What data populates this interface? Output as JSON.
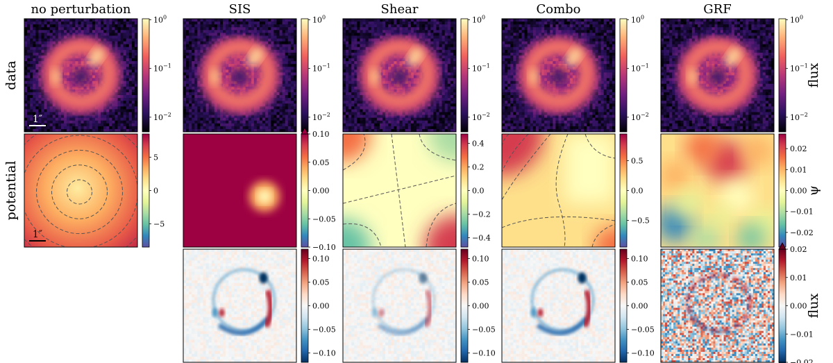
{
  "figure": {
    "columns": [
      "no perturbation",
      "SIS",
      "Shear",
      "Combo",
      "GRF"
    ],
    "rows": [
      "data",
      "potential"
    ],
    "row3_label": "flux",
    "scale_bar_label": "1″",
    "colors": {
      "magma": [
        "#000004",
        "#2c115f",
        "#721f81",
        "#b73779",
        "#f1605d",
        "#feb078",
        "#fcfdbf"
      ],
      "spectral": [
        "#5e4fa2",
        "#3288bd",
        "#66c2a5",
        "#abdda4",
        "#e6f598",
        "#ffffbf",
        "#fee08b",
        "#fdae61",
        "#f46d43",
        "#d53e4f",
        "#9e0142"
      ],
      "rdbu": [
        "#053061",
        "#2166ac",
        "#4393c3",
        "#92c5de",
        "#d1e5f0",
        "#f7f7f7",
        "#fddbc7",
        "#f4a582",
        "#d6604d",
        "#b2182b",
        "#67001f"
      ]
    }
  },
  "chart_data": [
    {
      "id": "data-no-perturbation",
      "type": "heatmap",
      "title": "no perturbation",
      "ylabel": "data",
      "colormap": "magma",
      "scale": "log",
      "colorbar_ticks": [
        {
          "base": "10",
          "exp": "0",
          "value": 1
        },
        {
          "base": "10",
          "exp": "−1",
          "value": 0.1
        },
        {
          "base": "10",
          "exp": "−2",
          "value": 0.01
        }
      ]
    },
    {
      "id": "data-sis",
      "type": "heatmap",
      "title": "SIS",
      "colormap": "magma",
      "scale": "log",
      "colorbar_ticks": [
        {
          "base": "10",
          "exp": "0",
          "value": 1
        },
        {
          "base": "10",
          "exp": "−1",
          "value": 0.1
        },
        {
          "base": "10",
          "exp": "−2",
          "value": 0.01
        }
      ]
    },
    {
      "id": "data-shear",
      "type": "heatmap",
      "title": "Shear",
      "colormap": "magma",
      "scale": "log",
      "colorbar_ticks": [
        {
          "base": "10",
          "exp": "0",
          "value": 1
        },
        {
          "base": "10",
          "exp": "−1",
          "value": 0.1
        },
        {
          "base": "10",
          "exp": "−2",
          "value": 0.01
        }
      ]
    },
    {
      "id": "data-combo",
      "type": "heatmap",
      "title": "Combo",
      "colormap": "magma",
      "scale": "log",
      "colorbar_ticks": [
        {
          "base": "10",
          "exp": "0",
          "value": 1
        },
        {
          "base": "10",
          "exp": "−1",
          "value": 0.1
        },
        {
          "base": "10",
          "exp": "−2",
          "value": 0.01
        }
      ]
    },
    {
      "id": "data-grf",
      "type": "heatmap",
      "title": "GRF",
      "colormap": "magma",
      "scale": "log",
      "colorbar_label": "flux",
      "colorbar_ticks": [
        {
          "base": "10",
          "exp": "0",
          "value": 1
        },
        {
          "base": "10",
          "exp": "−1",
          "value": 0.1
        },
        {
          "base": "10",
          "exp": "−2",
          "value": 0.01
        }
      ]
    },
    {
      "id": "potential-no-perturbation",
      "type": "heatmap",
      "ylabel": "potential",
      "colormap": "spectral",
      "contours": true,
      "range": [
        -8.5,
        8.5
      ],
      "colorbar_ticks": [
        {
          "label": "5",
          "value": 5
        },
        {
          "label": "0",
          "value": 0
        },
        {
          "label": "−5",
          "value": -5
        }
      ]
    },
    {
      "id": "potential-sis",
      "type": "heatmap",
      "colormap": "spectral",
      "range": [
        -0.1,
        0.1
      ],
      "extend": "max",
      "colorbar_ticks": [
        {
          "label": "0.10",
          "value": 0.1
        },
        {
          "label": "0.05",
          "value": 0.05
        },
        {
          "label": "0.00",
          "value": 0
        },
        {
          "label": "−0.05",
          "value": -0.05
        },
        {
          "label": "−0.10",
          "value": -0.1
        }
      ]
    },
    {
      "id": "potential-shear",
      "type": "heatmap",
      "colormap": "spectral",
      "contours": true,
      "range": [
        -0.48,
        0.48
      ],
      "colorbar_ticks": [
        {
          "label": "0.4",
          "value": 0.4
        },
        {
          "label": "0.2",
          "value": 0.2
        },
        {
          "label": "0.0",
          "value": 0
        },
        {
          "label": "−0.2",
          "value": -0.2
        },
        {
          "label": "−0.4",
          "value": -0.4
        }
      ]
    },
    {
      "id": "potential-combo",
      "type": "heatmap",
      "colormap": "spectral",
      "contours": true,
      "range": [
        -0.95,
        0.95
      ],
      "colorbar_ticks": [
        {
          "label": "0.5",
          "value": 0.5
        },
        {
          "label": "0.0",
          "value": 0
        },
        {
          "label": "−0.5",
          "value": -0.5
        }
      ]
    },
    {
      "id": "potential-grf",
      "type": "heatmap",
      "colormap": "spectral",
      "range": [
        -0.027,
        0.027
      ],
      "colorbar_label": "ψ",
      "colorbar_ticks": [
        {
          "label": "0.02",
          "value": 0.02
        },
        {
          "label": "0.01",
          "value": 0.01
        },
        {
          "label": "0.00",
          "value": 0
        },
        {
          "label": "−0.01",
          "value": -0.01
        },
        {
          "label": "−0.02",
          "value": -0.02
        }
      ]
    },
    {
      "id": "residual-sis",
      "type": "heatmap",
      "colormap": "rdbu_r",
      "range": [
        -0.12,
        0.12
      ],
      "colorbar_ticks": [
        {
          "label": "0.10",
          "value": 0.1
        },
        {
          "label": "0.05",
          "value": 0.05
        },
        {
          "label": "0.00",
          "value": 0
        },
        {
          "label": "−0.05",
          "value": -0.05
        },
        {
          "label": "−0.10",
          "value": -0.1
        }
      ]
    },
    {
      "id": "residual-shear",
      "type": "heatmap",
      "colormap": "rdbu_r",
      "range": [
        -0.12,
        0.12
      ],
      "colorbar_ticks": [
        {
          "label": "0.10",
          "value": 0.1
        },
        {
          "label": "0.05",
          "value": 0.05
        },
        {
          "label": "0.00",
          "value": 0
        },
        {
          "label": "−0.05",
          "value": -0.05
        },
        {
          "label": "−0.10",
          "value": -0.1
        }
      ]
    },
    {
      "id": "residual-combo",
      "type": "heatmap",
      "colormap": "rdbu_r",
      "range": [
        -0.12,
        0.12
      ],
      "colorbar_ticks": [
        {
          "label": "0.10",
          "value": 0.1
        },
        {
          "label": "0.05",
          "value": 0.05
        },
        {
          "label": "0.00",
          "value": 0
        },
        {
          "label": "−0.05",
          "value": -0.05
        },
        {
          "label": "−0.10",
          "value": -0.1
        }
      ]
    },
    {
      "id": "residual-grf",
      "type": "heatmap",
      "colormap": "rdbu_r",
      "range": [
        -0.02,
        0.02
      ],
      "extend": "both",
      "colorbar_label": "flux",
      "colorbar_ticks": [
        {
          "label": "0.02",
          "value": 0.02
        },
        {
          "label": "0.01",
          "value": 0.01
        },
        {
          "label": "0.00",
          "value": 0
        },
        {
          "label": "−0.01",
          "value": -0.01
        },
        {
          "label": "−0.02",
          "value": -0.02
        }
      ]
    }
  ]
}
